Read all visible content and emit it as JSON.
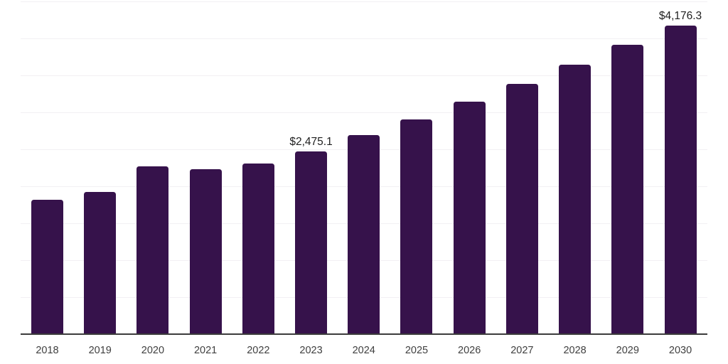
{
  "chart_data": {
    "type": "bar",
    "title": "",
    "categories": [
      "2018",
      "2019",
      "2020",
      "2021",
      "2022",
      "2023",
      "2024",
      "2025",
      "2026",
      "2027",
      "2028",
      "2029",
      "2030"
    ],
    "values": [
      1815,
      1922,
      2272,
      2234,
      2310,
      2475.1,
      2690,
      2908,
      3147,
      3380,
      3641,
      3912,
      4176.3
    ],
    "annotations": [
      {
        "category": "2023",
        "text": "$2,475.1"
      },
      {
        "category": "2030",
        "text": "$4,176.3"
      }
    ],
    "xlabel": "",
    "ylabel": "",
    "ylim": [
      0,
      4500
    ],
    "gridline_step": 500,
    "grid": "horizontal",
    "legend_position": "none",
    "colors": {
      "bar": "#36124B",
      "gridline": "#f2f0f3",
      "axis": "#3c3c3c",
      "tick_label": "#404040",
      "value_label": "#1f1f1f",
      "background": "#ffffff"
    }
  }
}
